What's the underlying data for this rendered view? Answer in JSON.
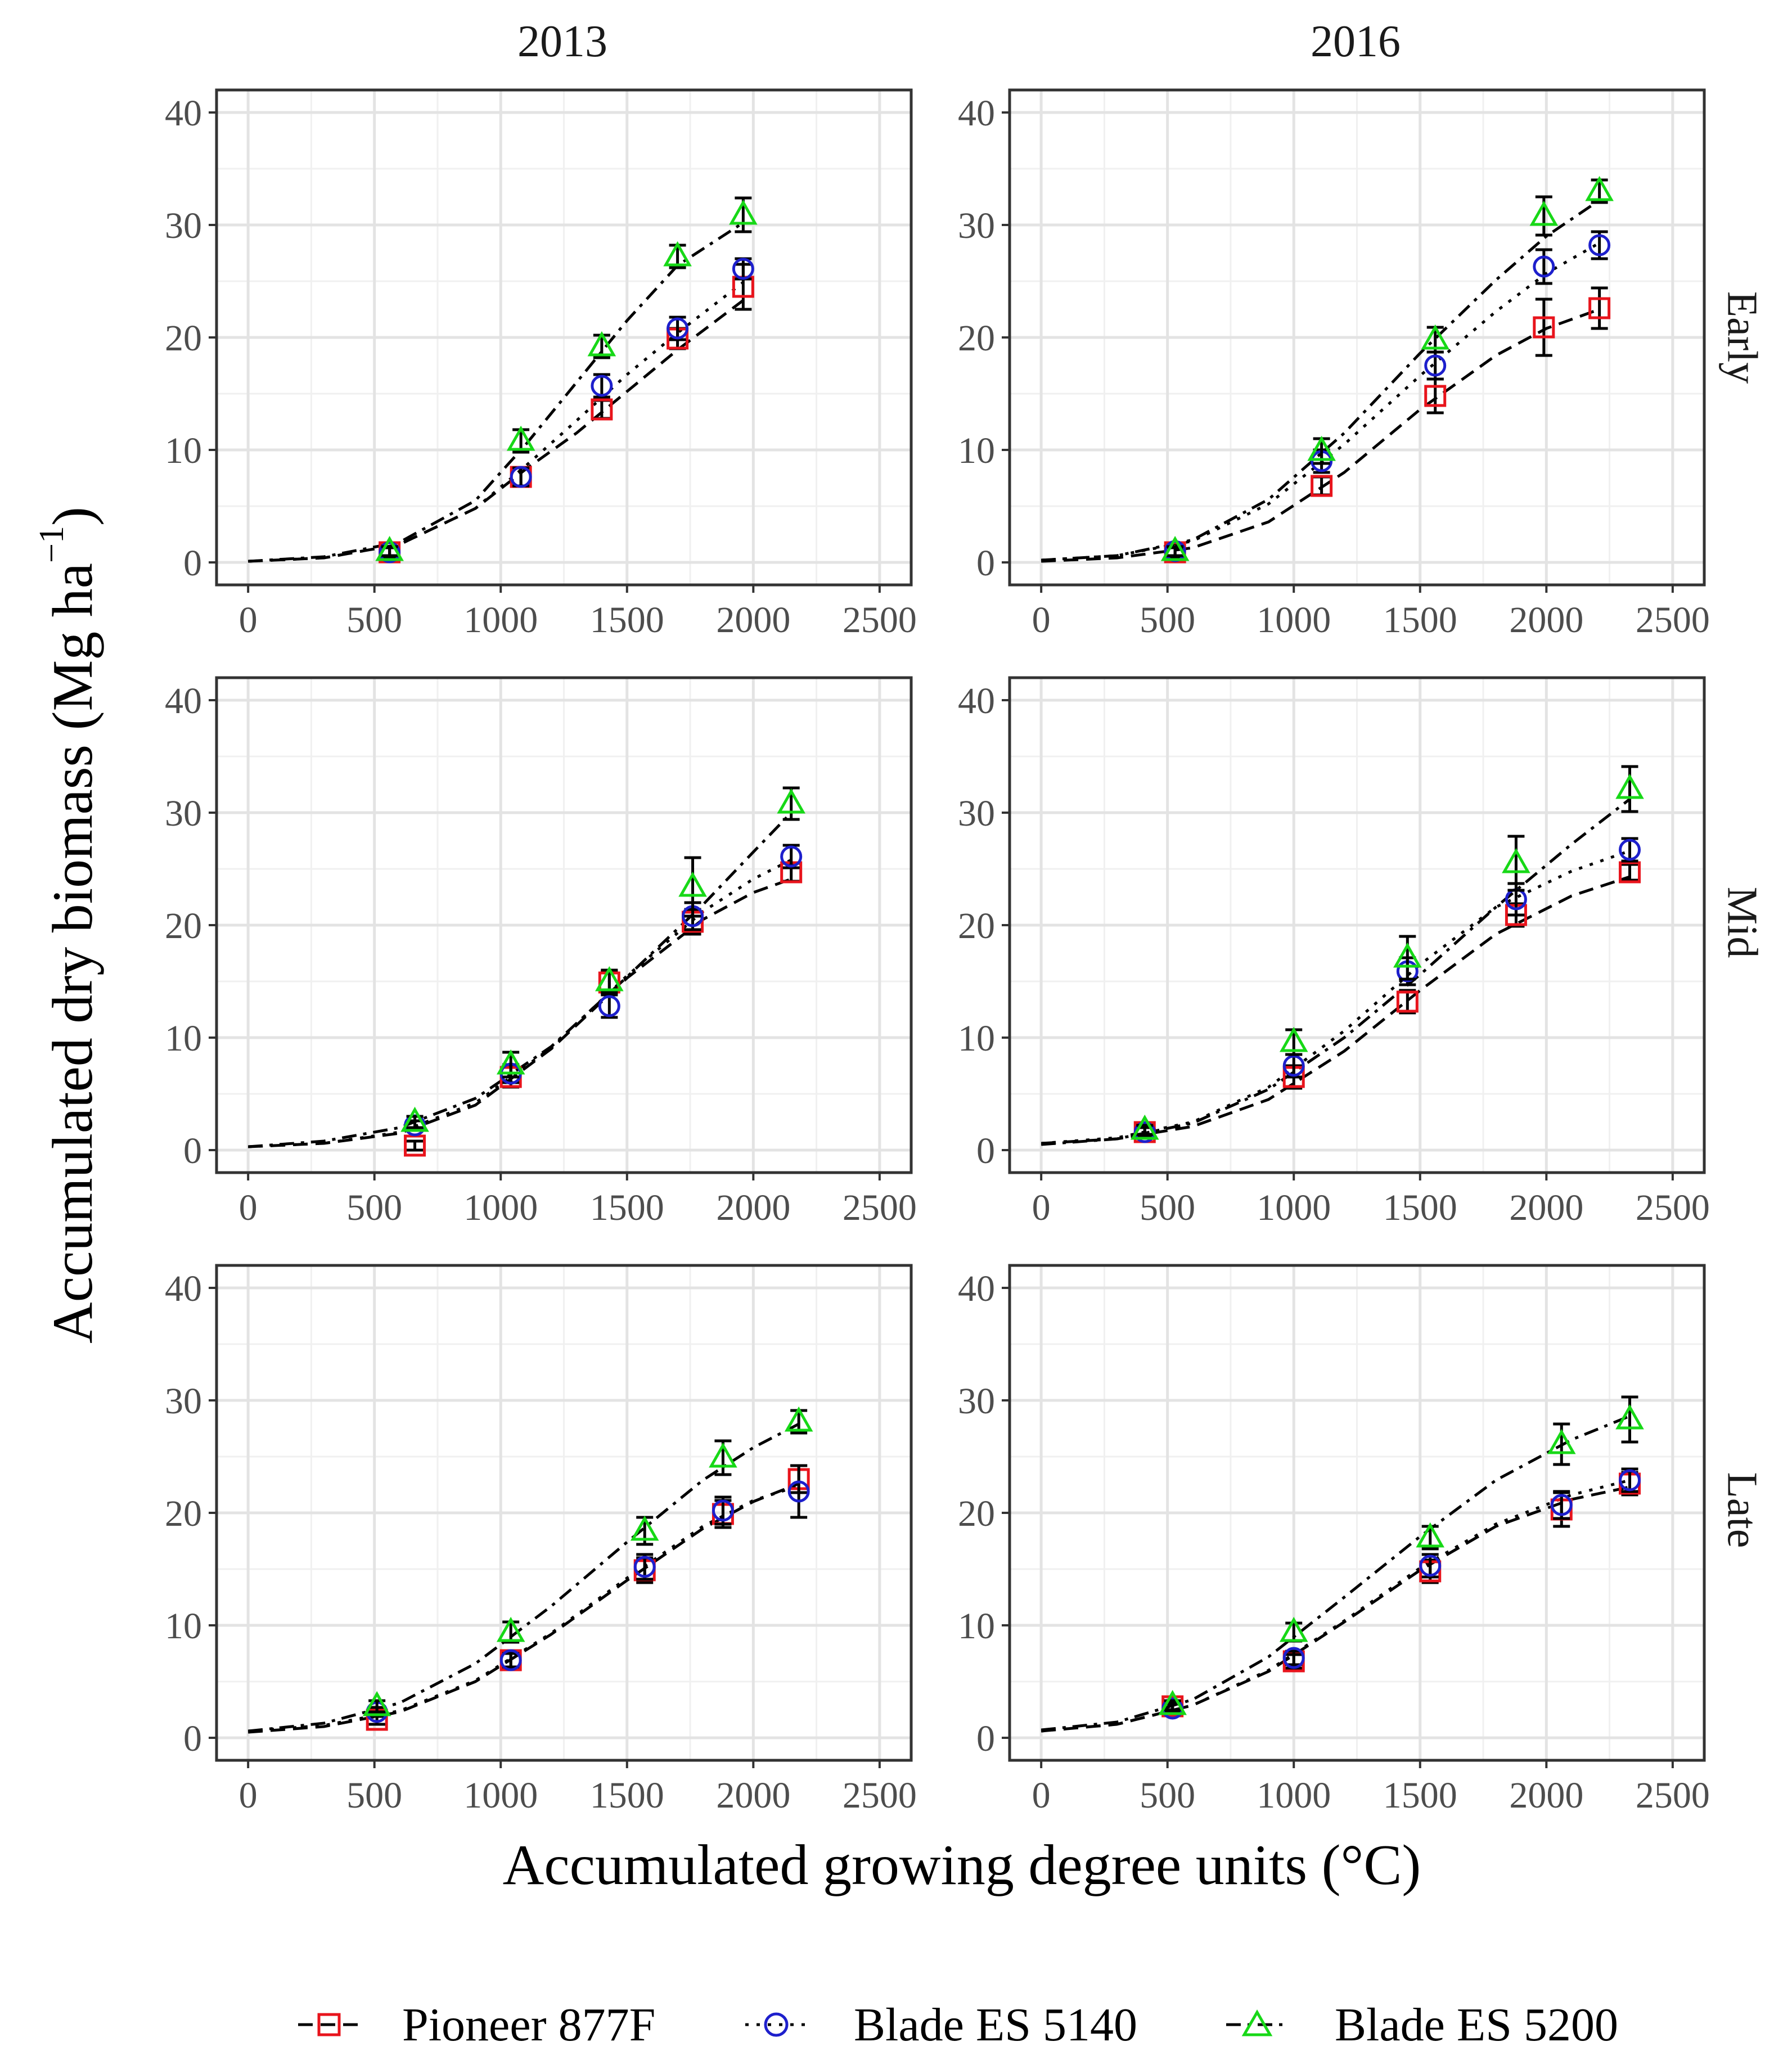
{
  "figure": {
    "ylabel_main": "Accumulated dry biomass (Mg ha",
    "ylabel_sup": "−1",
    "ylabel_close": ")",
    "xlabel": "Accumulated growing degree units (°C)"
  },
  "years": [
    "2013",
    "2016"
  ],
  "timings": [
    "Early",
    "Mid",
    "Late"
  ],
  "legend": [
    {
      "name": "Pioneer 877F",
      "color": "#e8141c",
      "marker": "square",
      "dash": "dash"
    },
    {
      "name": "Blade ES 5140",
      "color": "#1d1fcc",
      "marker": "circle",
      "dash": "dot"
    },
    {
      "name": "Blade ES 5200",
      "color": "#17d817",
      "marker": "triangle",
      "dash": "dashdot"
    }
  ],
  "chart_data": {
    "type": "scatter",
    "xlim": [
      -125,
      2625
    ],
    "ylim": [
      -2,
      42
    ],
    "xticks": [
      0,
      500,
      1000,
      1500,
      2000,
      2500
    ],
    "yticks": [
      0,
      10,
      20,
      30,
      40
    ],
    "grid": true,
    "legend_position": "bottom",
    "panels": [
      {
        "year": "2013",
        "timing": "Early",
        "series": [
          {
            "name": "Pioneer 877F",
            "x": [
              560,
              1080,
              1400,
              1700,
              1960
            ],
            "y": [
              0.9,
              7.6,
              13.6,
              19.9,
              24.5
            ],
            "err": [
              0.4,
              0.8,
              0.8,
              0.9,
              2.0
            ],
            "fit_x": [
              0,
              300,
              600,
              900,
              1100,
              1300,
              1500,
              1700,
              1960
            ],
            "fit_y": [
              0.1,
              0.4,
              1.6,
              4.8,
              8.3,
              11.5,
              15.2,
              18.9,
              23.3
            ]
          },
          {
            "name": "Blade ES 5140",
            "x": [
              560,
              1080,
              1400,
              1700,
              1960
            ],
            "y": [
              0.9,
              7.6,
              15.7,
              20.8,
              26.1
            ],
            "err": [
              0.4,
              0.8,
              1.0,
              1.0,
              0.9
            ],
            "fit_x": [
              0,
              300,
              600,
              900,
              1100,
              1300,
              1500,
              1700,
              1960
            ],
            "fit_y": [
              0.1,
              0.4,
              1.6,
              4.8,
              8.6,
              12.6,
              16.7,
              20.4,
              24.9
            ]
          },
          {
            "name": "Blade ES 5200",
            "x": [
              560,
              1080,
              1400,
              1700,
              1960
            ],
            "y": [
              1.0,
              10.8,
              19.2,
              27.2,
              30.9
            ],
            "err": [
              0.4,
              1.0,
              1.0,
              1.0,
              1.5
            ],
            "fit_x": [
              0,
              300,
              600,
              900,
              1100,
              1300,
              1500,
              1700,
              1960
            ],
            "fit_y": [
              0.1,
              0.5,
              1.8,
              5.5,
              10.5,
              16.0,
              21.5,
              26.4,
              30.2
            ]
          }
        ]
      },
      {
        "year": "2016",
        "timing": "Early",
        "series": [
          {
            "name": "Pioneer 877F",
            "x": [
              530,
              1110,
              1560,
              1990,
              2210
            ],
            "y": [
              0.9,
              6.8,
              14.8,
              20.9,
              22.6
            ],
            "err": [
              0.4,
              0.8,
              1.5,
              2.5,
              1.8
            ],
            "fit_x": [
              0,
              300,
              600,
              900,
              1200,
              1500,
              1800,
              2000,
              2210
            ],
            "fit_y": [
              0.1,
              0.4,
              1.3,
              3.6,
              8.0,
              13.6,
              18.4,
              20.8,
              22.5
            ]
          },
          {
            "name": "Blade ES 5140",
            "x": [
              530,
              1110,
              1560,
              1990,
              2210
            ],
            "y": [
              1.0,
              9.0,
              17.5,
              26.3,
              28.2
            ],
            "err": [
              0.4,
              1.0,
              1.2,
              1.5,
              1.2
            ],
            "fit_x": [
              0,
              300,
              600,
              900,
              1200,
              1500,
              1800,
              2000,
              2210
            ],
            "fit_y": [
              0.2,
              0.6,
              1.9,
              5.2,
              10.5,
              16.6,
              22.3,
              25.7,
              28.4
            ]
          },
          {
            "name": "Blade ES 5200",
            "x": [
              530,
              1110,
              1560,
              1990,
              2210
            ],
            "y": [
              1.0,
              9.9,
              19.8,
              30.8,
              33.0
            ],
            "err": [
              0.4,
              1.1,
              1.1,
              1.7,
              1.0
            ],
            "fit_x": [
              0,
              300,
              600,
              900,
              1200,
              1500,
              1800,
              2000,
              2210
            ],
            "fit_y": [
              0.2,
              0.6,
              2.0,
              5.6,
              11.5,
              18.6,
              25.1,
              29.0,
              32.2
            ]
          }
        ]
      },
      {
        "year": "2013",
        "timing": "Mid",
        "series": [
          {
            "name": "Pioneer 877F",
            "x": [
              660,
              1040,
              1430,
              1760,
              2150
            ],
            "y": [
              0.4,
              6.5,
              14.9,
              20.3,
              24.7
            ],
            "err": [
              0.4,
              0.9,
              1.0,
              1.1,
              0.8
            ],
            "fit_x": [
              0,
              300,
              600,
              900,
              1200,
              1500,
              1800,
              2000,
              2150
            ],
            "fit_y": [
              0.3,
              0.6,
              1.5,
              4.0,
              9.0,
              15.3,
              20.5,
              22.9,
              24.1
            ]
          },
          {
            "name": "Blade ES 5140",
            "x": [
              660,
              1040,
              1430,
              1760,
              2150
            ],
            "y": [
              2.2,
              6.8,
              12.8,
              20.8,
              26.1
            ],
            "err": [
              0.4,
              0.8,
              1.0,
              1.2,
              1.0
            ],
            "fit_x": [
              0,
              300,
              600,
              900,
              1200,
              1500,
              1800,
              2000,
              2150
            ],
            "fit_y": [
              0.3,
              0.6,
              1.6,
              4.2,
              9.1,
              15.5,
              21.2,
              24.1,
              25.8
            ]
          },
          {
            "name": "Blade ES 5200",
            "x": [
              660,
              1040,
              1430,
              1760,
              2150
            ],
            "y": [
              2.5,
              7.6,
              15.0,
              23.4,
              30.8
            ],
            "err": [
              0.5,
              1.1,
              1.0,
              2.6,
              1.4
            ],
            "fit_x": [
              0,
              300,
              600,
              900,
              1200,
              1500,
              1800,
              2000,
              2150
            ],
            "fit_y": [
              0.3,
              0.8,
              2.0,
              4.6,
              9.2,
              15.4,
              21.8,
              26.5,
              30.0
            ]
          }
        ]
      },
      {
        "year": "2016",
        "timing": "Mid",
        "series": [
          {
            "name": "Pioneer 877F",
            "x": [
              410,
              1000,
              1450,
              1880,
              2330
            ],
            "y": [
              1.6,
              6.5,
              13.2,
              20.9,
              24.7
            ],
            "err": [
              0.4,
              1.0,
              1.0,
              1.0,
              0.7
            ],
            "fit_x": [
              0,
              300,
              600,
              900,
              1200,
              1500,
              1800,
              2100,
              2330
            ],
            "fit_y": [
              0.6,
              1.0,
              2.1,
              4.5,
              8.8,
              14.2,
              19.2,
              22.6,
              24.3
            ]
          },
          {
            "name": "Blade ES 5140",
            "x": [
              410,
              1000,
              1450,
              1880,
              2330
            ],
            "y": [
              1.6,
              7.5,
              15.9,
              22.3,
              26.7
            ],
            "err": [
              0.4,
              1.0,
              1.2,
              1.4,
              1.0
            ],
            "fit_x": [
              0,
              300,
              600,
              900,
              1200,
              1500,
              1800,
              2100,
              2330
            ],
            "fit_y": [
              0.6,
              1.1,
              2.5,
              5.6,
              10.6,
              16.5,
              21.6,
              24.8,
              26.6
            ]
          },
          {
            "name": "Blade ES 5200",
            "x": [
              410,
              1000,
              1450,
              1880,
              2330
            ],
            "y": [
              1.8,
              9.6,
              17.1,
              25.5,
              32.1
            ],
            "err": [
              0.4,
              1.1,
              1.9,
              2.4,
              2.0
            ],
            "fit_x": [
              0,
              300,
              600,
              900,
              1200,
              1500,
              1800,
              2100,
              2330
            ],
            "fit_y": [
              0.5,
              1.0,
              2.4,
              5.4,
              10.0,
              15.6,
              21.6,
              27.2,
              31.2
            ]
          }
        ]
      },
      {
        "year": "2013",
        "timing": "Late",
        "series": [
          {
            "name": "Pioneer 877F",
            "x": [
              510,
              1040,
              1570,
              1880,
              2180
            ],
            "y": [
              1.6,
              6.9,
              14.9,
              19.9,
              23.0
            ],
            "err": [
              0.4,
              0.6,
              1.1,
              1.2,
              1.2
            ],
            "fit_x": [
              0,
              300,
              600,
              900,
              1200,
              1500,
              1800,
              2000,
              2180
            ],
            "fit_y": [
              0.5,
              1.0,
              2.3,
              5.0,
              9.2,
              14.0,
              18.6,
              21.0,
              22.6
            ]
          },
          {
            "name": "Blade ES 5140",
            "x": [
              510,
              1040,
              1570,
              1880,
              2180
            ],
            "y": [
              2.3,
              6.9,
              15.2,
              20.2,
              21.9
            ],
            "err": [
              0.4,
              0.6,
              1.1,
              1.2,
              2.3
            ],
            "fit_x": [
              0,
              300,
              600,
              900,
              1200,
              1500,
              1800,
              2000,
              2180
            ],
            "fit_y": [
              0.6,
              1.1,
              2.4,
              5.1,
              9.3,
              14.2,
              18.8,
              21.1,
              22.4
            ]
          },
          {
            "name": "Blade ES 5200",
            "x": [
              510,
              1040,
              1570,
              1880,
              2180
            ],
            "y": [
              2.8,
              9.4,
              18.4,
              24.9,
              28.1
            ],
            "err": [
              0.5,
              0.9,
              1.2,
              1.5,
              1.0
            ],
            "fit_x": [
              0,
              300,
              600,
              900,
              1200,
              1500,
              1800,
              2000,
              2180
            ],
            "fit_y": [
              0.6,
              1.3,
              3.1,
              6.6,
              11.7,
              17.4,
              22.9,
              25.8,
              27.9
            ]
          }
        ]
      },
      {
        "year": "2016",
        "timing": "Late",
        "series": [
          {
            "name": "Pioneer 877F",
            "x": [
              520,
              1000,
              1540,
              2060,
              2330
            ],
            "y": [
              2.8,
              6.8,
              14.8,
              20.3,
              22.6
            ],
            "err": [
              0.4,
              0.6,
              1.0,
              1.5,
              1.0
            ],
            "fit_x": [
              0,
              300,
              600,
              900,
              1200,
              1500,
              1800,
              2100,
              2330
            ],
            "fit_y": [
              0.6,
              1.2,
              2.9,
              5.9,
              10.3,
              14.9,
              18.8,
              21.2,
              22.3
            ]
          },
          {
            "name": "Blade ES 5140",
            "x": [
              520,
              1000,
              1540,
              2060,
              2330
            ],
            "y": [
              2.6,
              7.1,
              15.3,
              20.7,
              22.9
            ],
            "err": [
              0.4,
              0.6,
              1.0,
              1.2,
              1.0
            ],
            "fit_x": [
              0,
              300,
              600,
              900,
              1200,
              1500,
              1800,
              2100,
              2330
            ],
            "fit_y": [
              0.6,
              1.2,
              2.9,
              6.0,
              10.4,
              15.1,
              19.0,
              21.6,
              22.9
            ]
          },
          {
            "name": "Blade ES 5200",
            "x": [
              520,
              1000,
              1540,
              2060,
              2330
            ],
            "y": [
              2.9,
              9.4,
              17.8,
              26.1,
              28.3
            ],
            "err": [
              0.4,
              0.8,
              1.0,
              1.8,
              2.0
            ],
            "fit_x": [
              0,
              300,
              600,
              900,
              1200,
              1500,
              1800,
              2100,
              2330
            ],
            "fit_y": [
              0.7,
              1.4,
              3.4,
              7.2,
              12.5,
              17.9,
              22.9,
              26.5,
              28.6
            ]
          }
        ]
      }
    ]
  }
}
